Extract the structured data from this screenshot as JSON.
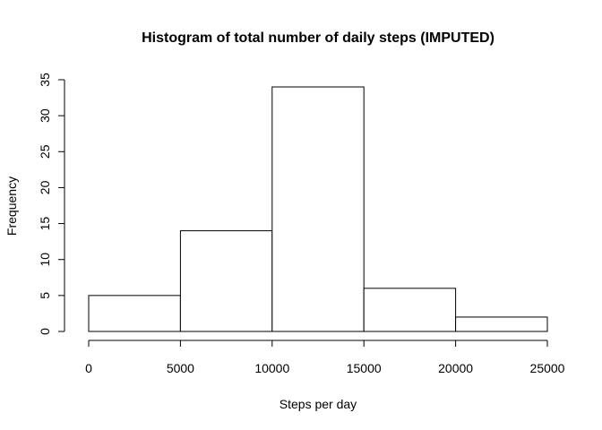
{
  "chart_data": {
    "type": "bar",
    "title": "Histogram of total number of daily steps (IMPUTED)",
    "xlabel": "Steps per day",
    "ylabel": "Frequency",
    "bins": [
      {
        "from": 0,
        "to": 5000,
        "value": 5
      },
      {
        "from": 5000,
        "to": 10000,
        "value": 14
      },
      {
        "from": 10000,
        "to": 15000,
        "value": 34
      },
      {
        "from": 15000,
        "to": 20000,
        "value": 6
      },
      {
        "from": 20000,
        "to": 25000,
        "value": 2
      }
    ],
    "xticks": [
      0,
      5000,
      10000,
      15000,
      20000,
      25000
    ],
    "yticks": [
      0,
      5,
      10,
      15,
      20,
      25,
      30,
      35
    ],
    "xlim": [
      0,
      25000
    ],
    "ylim": [
      0,
      35
    ],
    "grid": false,
    "bar_fill": "#ffffff",
    "bar_stroke": "#000000"
  }
}
